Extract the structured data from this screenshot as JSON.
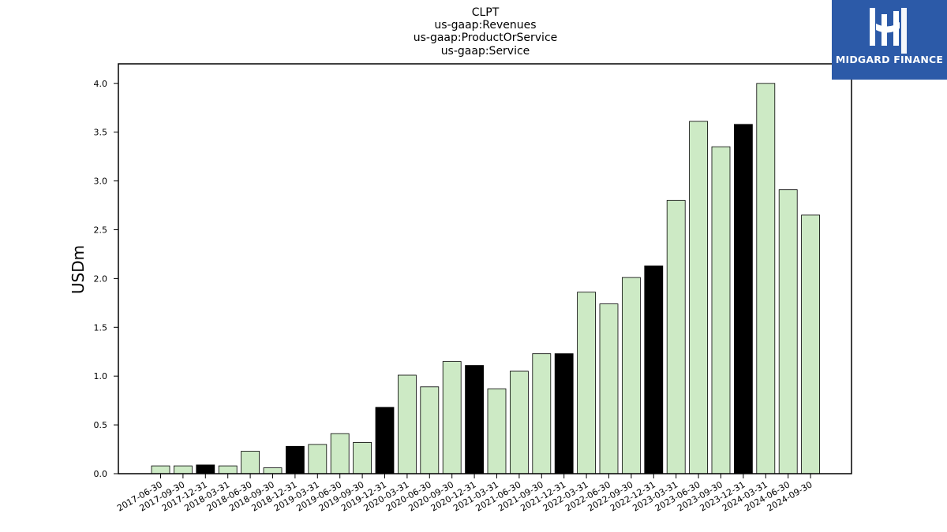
{
  "chart_data": {
    "type": "bar",
    "title": [
      "CLPT",
      "us-gaap:Revenues",
      "us-gaap:ProductOrService",
      "us-gaap:Service"
    ],
    "xlabel": "",
    "ylabel": "USDm",
    "ylim": [
      0,
      4.2
    ],
    "yticks": [
      "0.0",
      "0.5",
      "1.0",
      "1.5",
      "2.0",
      "2.5",
      "3.0",
      "3.5",
      "4.0"
    ],
    "grid": false,
    "categories": [
      "2017-06-30",
      "2017-09-30",
      "2017-12-31",
      "2018-03-31",
      "2018-06-30",
      "2018-09-30",
      "2018-12-31",
      "2019-03-31",
      "2019-06-30",
      "2019-09-30",
      "2019-12-31",
      "2020-03-31",
      "2020-06-30",
      "2020-09-30",
      "2020-12-31",
      "2021-03-31",
      "2021-06-30",
      "2021-09-30",
      "2021-12-31",
      "2022-03-31",
      "2022-06-30",
      "2022-09-30",
      "2022-12-31",
      "2023-03-31",
      "2023-06-30",
      "2023-09-30",
      "2023-12-31",
      "2024-03-31",
      "2024-06-30",
      "2024-09-30"
    ],
    "values": [
      0.08,
      0.08,
      0.09,
      0.08,
      0.23,
      0.06,
      0.28,
      0.3,
      0.41,
      0.32,
      0.68,
      1.01,
      0.89,
      1.15,
      1.11,
      0.87,
      1.05,
      1.23,
      1.23,
      1.86,
      1.74,
      2.01,
      2.13,
      2.8,
      3.61,
      3.35,
      3.58,
      4.0,
      2.91,
      2.65
    ],
    "highlight": [
      false,
      false,
      true,
      false,
      false,
      false,
      true,
      false,
      false,
      false,
      true,
      false,
      false,
      false,
      true,
      false,
      false,
      false,
      true,
      false,
      false,
      false,
      true,
      false,
      false,
      false,
      true,
      false,
      false,
      false
    ],
    "colors": {
      "bar": "#cdeac5",
      "highlight": "#000000",
      "edge": "#000000"
    }
  },
  "logo": {
    "text": "MIDGARD FINANCE",
    "icon": "midgard-logo-icon",
    "background": "#2c5aa8"
  }
}
